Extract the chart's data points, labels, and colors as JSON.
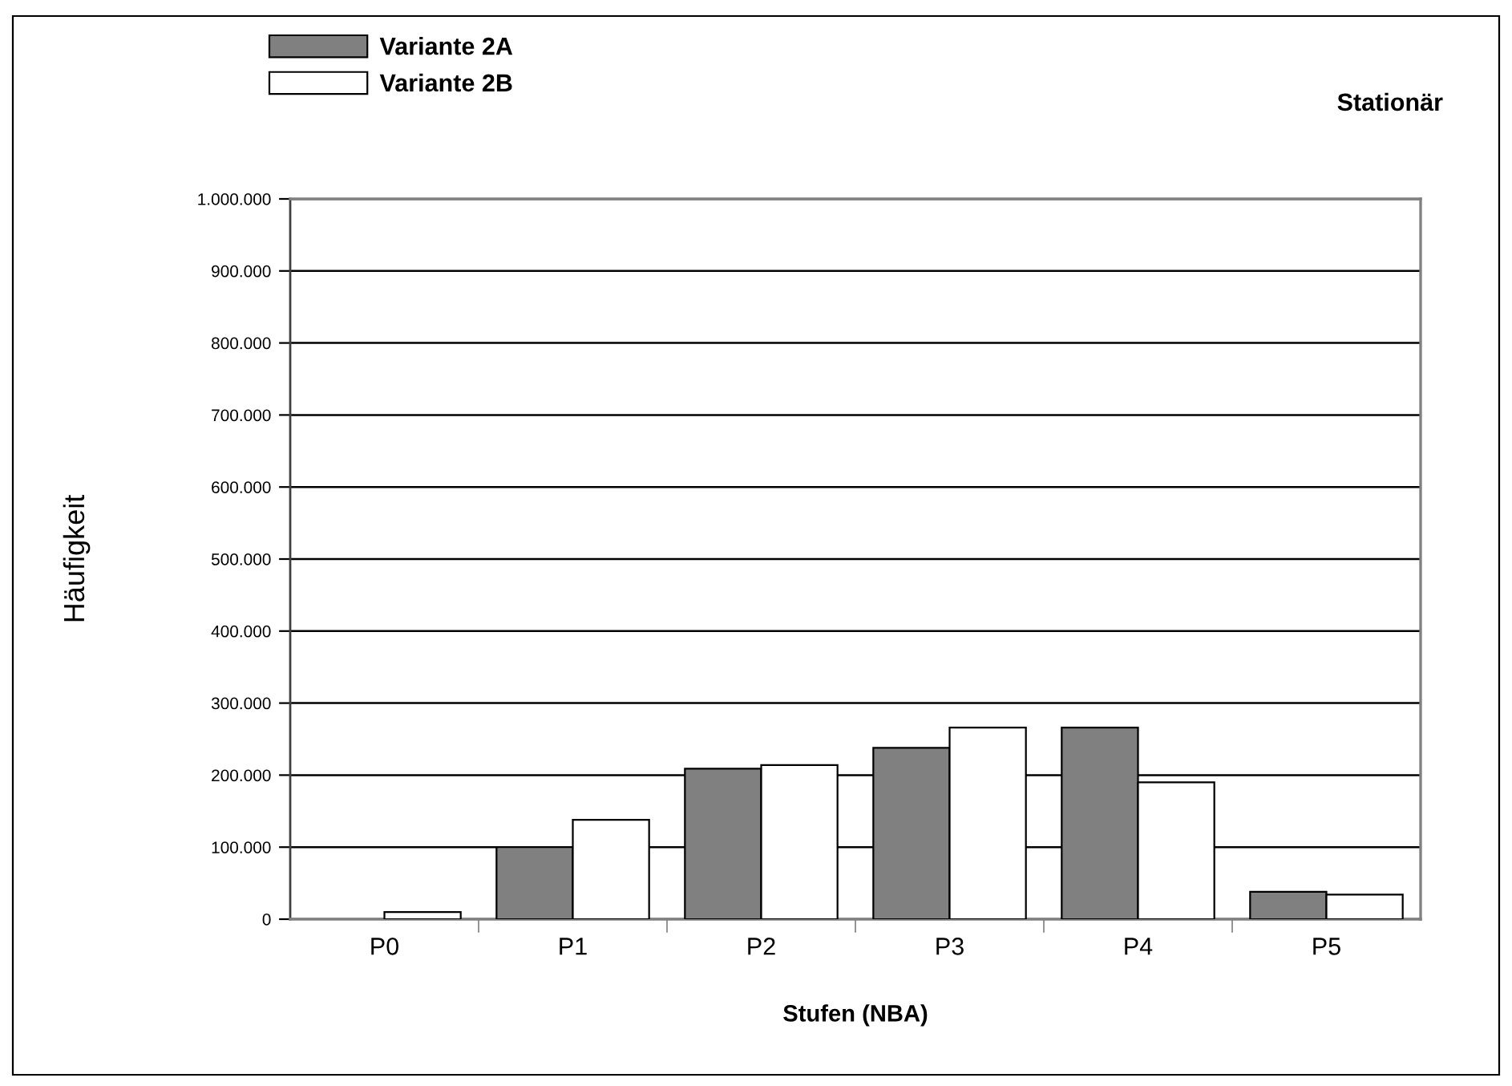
{
  "chart_data": {
    "type": "bar",
    "title": "Stationär",
    "xlabel": "Stufen (NBA)",
    "ylabel": "Häufigkeit",
    "categories": [
      "P0",
      "P1",
      "P2",
      "P3",
      "P4",
      "P5"
    ],
    "series": [
      {
        "name": "Variante 2A",
        "color": "#808080",
        "values": [
          null,
          100000,
          209000,
          238000,
          266000,
          38000
        ]
      },
      {
        "name": "Variante 2B",
        "color": "#ffffff",
        "values": [
          10000,
          138000,
          214000,
          266000,
          190000,
          34000
        ]
      }
    ],
    "ylim": [
      0,
      1000000
    ],
    "yticks": [
      0,
      {
        "value": 100000,
        "label": "100.000"
      },
      {
        "value": 200000,
        "label": "200.000"
      },
      {
        "value": 300000,
        "label": "300.000"
      },
      {
        "value": 400000,
        "label": "400.000"
      },
      {
        "value": 500000,
        "label": "500.000"
      },
      {
        "value": 600000,
        "label": "600.000"
      },
      {
        "value": 700000,
        "label": "700.000"
      },
      {
        "value": 800000,
        "label": "800.000"
      },
      {
        "value": 900000,
        "label": "900.000"
      },
      {
        "value": 1000000,
        "label": "1.000.000"
      }
    ],
    "grid": "y",
    "legend": "top left"
  }
}
